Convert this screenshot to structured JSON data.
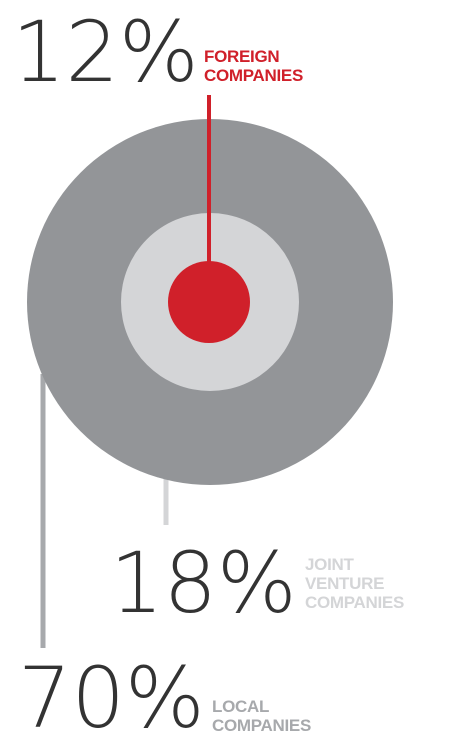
{
  "chart_data": {
    "type": "pie",
    "title": "",
    "series": [
      {
        "name": "FOREIGN COMPANIES",
        "label_lines": [
          "FOREIGN",
          "COMPANIES"
        ],
        "value": 12,
        "value_label": "12%",
        "color": "#d0202a"
      },
      {
        "name": "JOINT VENTURE COMPANIES",
        "label_lines": [
          "JOINT",
          "VENTURE",
          "COMPANIES"
        ],
        "value": 18,
        "value_label": "18%",
        "color": "#d4d5d7"
      },
      {
        "name": "LOCAL COMPANIES",
        "label_lines": [
          "LOCAL",
          "COMPANIES"
        ],
        "value": 70,
        "value_label": "70%",
        "color": "#939598"
      }
    ]
  }
}
